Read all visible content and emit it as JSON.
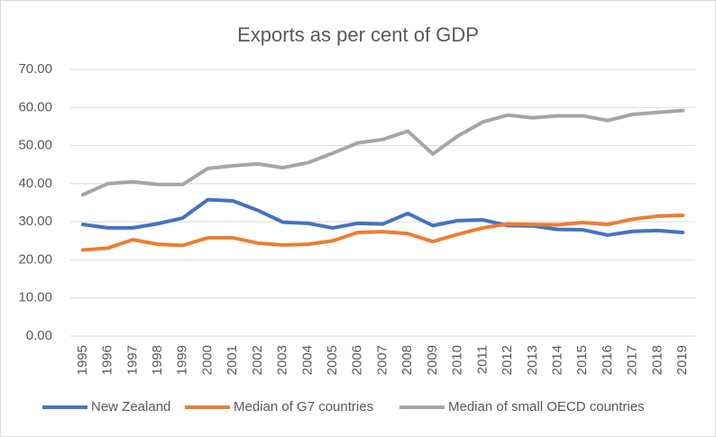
{
  "chart_data": {
    "type": "line",
    "title": "Exports as per cent of GDP",
    "categories": [
      "1995",
      "1996",
      "1997",
      "1998",
      "1999",
      "2000",
      "2001",
      "2002",
      "2003",
      "2004",
      "2005",
      "2006",
      "2007",
      "2008",
      "2009",
      "2010",
      "2011",
      "2012",
      "2013",
      "2014",
      "2015",
      "2016",
      "2017",
      "2018",
      "2019"
    ],
    "series": [
      {
        "name": "New Zealand",
        "color": "#4472c4",
        "values": [
          29.3,
          28.4,
          28.4,
          29.5,
          31.0,
          35.8,
          35.5,
          33.0,
          29.9,
          29.6,
          28.4,
          29.6,
          29.4,
          32.2,
          29.0,
          30.3,
          30.5,
          29.0,
          28.9,
          28.0,
          27.9,
          26.5,
          27.5,
          27.7,
          27.2
        ]
      },
      {
        "name": "Median of G7 countries",
        "color": "#ed7d31",
        "values": [
          22.6,
          23.1,
          25.3,
          24.1,
          23.8,
          25.8,
          25.8,
          24.4,
          23.9,
          24.1,
          25.0,
          27.2,
          27.4,
          26.9,
          24.8,
          26.7,
          28.4,
          29.4,
          29.3,
          29.2,
          29.8,
          29.3,
          30.7,
          31.5,
          31.7
        ]
      },
      {
        "name": "Median of small OECD countries",
        "color": "#a5a5a5",
        "values": [
          37.1,
          40.0,
          40.5,
          39.8,
          39.8,
          44.0,
          44.7,
          45.2,
          44.2,
          45.5,
          48.0,
          50.7,
          51.6,
          53.8,
          47.8,
          52.5,
          56.2,
          58.0,
          57.3,
          57.8,
          57.8,
          56.6,
          58.2,
          58.7,
          59.2
        ]
      }
    ],
    "ylim": [
      0,
      70
    ],
    "yticks": [
      {
        "value": 0,
        "label": "0.00"
      },
      {
        "value": 10,
        "label": "10.00"
      },
      {
        "value": 20,
        "label": "20.00"
      },
      {
        "value": 30,
        "label": "30.00"
      },
      {
        "value": 40,
        "label": "40.00"
      },
      {
        "value": 50,
        "label": "50.00"
      },
      {
        "value": 60,
        "label": "60.00"
      },
      {
        "value": 70,
        "label": "70.00"
      }
    ],
    "grid": true,
    "legend": "bottom"
  }
}
